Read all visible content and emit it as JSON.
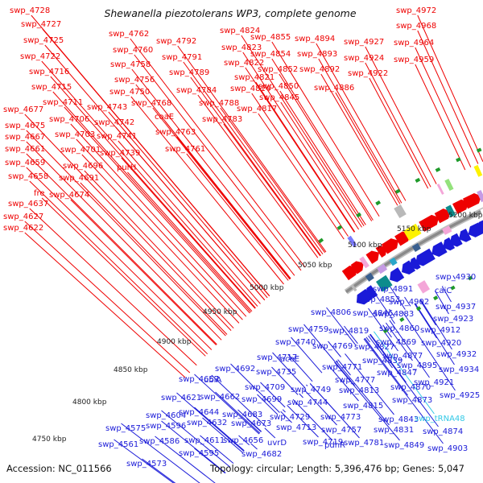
{
  "title": "Shewanella piezotolerans WP3, complete genome",
  "accession": "Accession: NC_011566",
  "summary": "Topology: circular; Length: 5,396,476 bp; Genes: 5,047",
  "colors": {
    "top_strand": "#ee0000",
    "bottom_strand": "#1a1ad8",
    "trna": "#33c9e6",
    "backbone": "#8a8a8a",
    "gc_marker": "#1f9a2a"
  },
  "scale_labels": [
    "4750 kbp",
    "4800 kbp",
    "4850 kbp",
    "4900 kbp",
    "4950 kbp",
    "5000 kbp",
    "5050 kbp",
    "5100 kbp",
    "5150 kbp",
    "5200 kbp"
  ],
  "top_labels": [
    "swp_4728",
    "swp_4727",
    "swp_4725",
    "swp_4722",
    "swp_4716",
    "swp_4715",
    "swp_4711",
    "swp_4677",
    "swp_4706",
    "swp_4675",
    "swp_4703",
    "swp_4667",
    "swp_4701",
    "swp_4661",
    "swp_4696",
    "swp_4659",
    "swp_4691",
    "swp_4658",
    "fre",
    "swp_4674",
    "swp_4637",
    "swp_4627",
    "swp_4622",
    "swp_4762",
    "swp_4760",
    "swp_4758",
    "swp_4756",
    "swp_4750",
    "swp_4743",
    "swp_4742",
    "swp_4741",
    "swp_4739",
    "purH",
    "swp_4792",
    "swp_4791",
    "swp_4789",
    "swp_4784",
    "swp_4768",
    "coaE",
    "swp_4763",
    "swp_4761",
    "swp_4788",
    "swp_4783",
    "swp_4824",
    "swp_4823",
    "swp_4822",
    "swp_4821",
    "swp_4814",
    "swp_4817",
    "swp_4855",
    "swp_4854",
    "swp_4852",
    "swp_4850",
    "swp_4845",
    "swp_4894",
    "swp_4893",
    "swp_4892",
    "swp_4886",
    "swp_4927",
    "swp_4924",
    "swp_4922",
    "swp_4972",
    "swp_4968",
    "swp_4964",
    "swp_4959"
  ],
  "bottom_labels": [
    "swp_4930",
    "caiC",
    "swp_4891",
    "swp_4853",
    "swp_4902",
    "swp_4937",
    "swp_4883",
    "swp_4923",
    "swp_4806",
    "swp_4846",
    "swp_4860",
    "swp_4912",
    "swp_4759",
    "swp_4819",
    "swp_4869",
    "swp_4920",
    "swp_4740",
    "swp_4769",
    "swp_4827",
    "swp_4877",
    "swp_4932",
    "swp_4717",
    "aceE",
    "swp_4839",
    "swp_4895",
    "swp_4934",
    "swp_4692",
    "swp_4735",
    "swp_4771",
    "swp_4847",
    "swp_4921",
    "swp_4657",
    "ubiA",
    "swp_4777",
    "swp_4870",
    "swp_4709",
    "swp_4749",
    "swp_4813",
    "swp_4925",
    "swp_4621",
    "swp_4662",
    "swp_4699",
    "swp_4744",
    "swp_4873",
    "swp_4815",
    "swp_4604",
    "swp_4644",
    "swp_4683",
    "swp_4729",
    "swp_4773",
    "swp_4843",
    "swp_4596",
    "swp_4632",
    "swp_4673",
    "swp_4713",
    "swp_4757",
    "swp_4831",
    "swp_4874",
    "swp_4575",
    "swp_4611",
    "swp_4656",
    "uvrD",
    "swp_4719",
    "pdhR",
    "swp_4781",
    "swp_4849",
    "swp_4903",
    "swp_4586",
    "swp_4561",
    "swp_4595",
    "swp_4682",
    "swp_4573"
  ],
  "trna_labels": [
    "swp_tRNA48"
  ]
}
